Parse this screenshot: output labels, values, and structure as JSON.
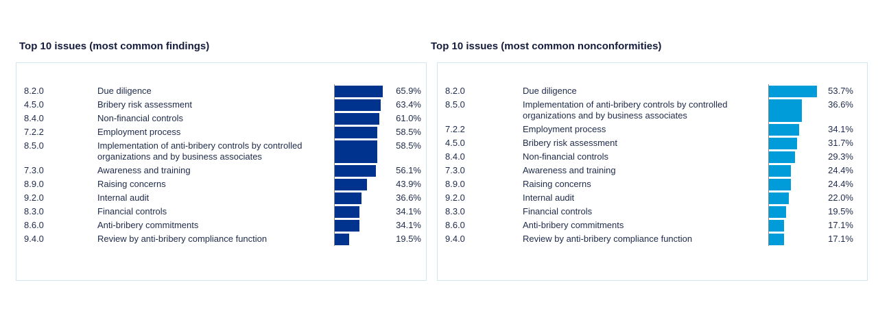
{
  "chart_data": [
    {
      "type": "bar",
      "title": "Top 10 issues (most common findings)",
      "color": "#00338d",
      "codes": [
        "8.2.0",
        "4.5.0",
        "8.4.0",
        "7.2.2",
        "8.5.0",
        "7.3.0",
        "8.9.0",
        "9.2.0",
        "8.3.0",
        "8.6.0",
        "9.4.0"
      ],
      "categories": [
        "Due diligence",
        "Bribery risk assessment",
        "Non-financial controls",
        "Employment process",
        "Implementation of anti-bribery controls by controlled organizations and by business associates",
        "Awareness and training",
        "Raising concerns",
        "Internal audit",
        "Financial controls",
        "Anti-bribery commitments",
        "Review by anti-bribery compliance function"
      ],
      "values": [
        65.9,
        63.4,
        61.0,
        58.5,
        58.5,
        56.1,
        43.9,
        36.6,
        34.1,
        34.1,
        19.5
      ],
      "value_labels": [
        "65.9%",
        "63.4%",
        "61.0%",
        "58.5%",
        "58.5%",
        "56.1%",
        "43.9%",
        "36.6%",
        "34.1%",
        "34.1%",
        "19.5%"
      ]
    },
    {
      "type": "bar",
      "title": "Top 10 issues (most common nonconformities)",
      "color": "#009cd9",
      "codes": [
        "8.2.0",
        "8.5.0",
        "7.2.2",
        "4.5.0",
        "8.4.0",
        "7.3.0",
        "8.9.0",
        "9.2.0",
        "8.3.0",
        "8.6.0",
        "9.4.0"
      ],
      "categories": [
        "Due diligence",
        "Implementation of anti-bribery controls by controlled organizations and by business associates",
        "Employment process",
        "Bribery risk assessment",
        "Non-financial controls",
        "Awareness and training",
        "Raising concerns",
        "Internal audit",
        "Financial controls",
        "Anti-bribery commitments",
        "Review by anti-bribery compliance function"
      ],
      "values": [
        53.7,
        36.6,
        34.1,
        31.7,
        29.3,
        24.4,
        24.4,
        22.0,
        19.5,
        17.1,
        17.1
      ],
      "value_labels": [
        "53.7%",
        "36.6%",
        "34.1%",
        "31.7%",
        "29.3%",
        "24.4%",
        "24.4%",
        "22.0%",
        "19.5%",
        "17.1%",
        "17.1%"
      ]
    }
  ]
}
